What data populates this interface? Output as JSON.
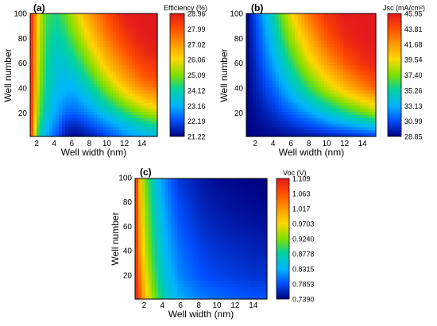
{
  "chart_data": [
    {
      "type": "heatmap",
      "panel_label": "(a)",
      "title": "",
      "xlabel": "Well width (nm)",
      "ylabel": "Well number",
      "xlim": [
        1,
        15.5
      ],
      "ylim": [
        1,
        100
      ],
      "xticks": [
        "2",
        "4",
        "6",
        "8",
        "10",
        "12",
        "14"
      ],
      "yticks": [
        "20",
        "40",
        "60",
        "80",
        "100"
      ],
      "colorbar_title": "Efficiency (%)",
      "colorbar_ticks": [
        "28.96",
        "27.99",
        "27.02",
        "26.06",
        "25.09",
        "24.12",
        "23.16",
        "22.19",
        "21.22"
      ],
      "zlim": [
        21.22,
        28.96
      ],
      "grid": false,
      "contour_lines": true,
      "values_grid": {
        "x": [
          1,
          1.5,
          2,
          3,
          4,
          5,
          6,
          7,
          8,
          9,
          10,
          11,
          12,
          13,
          14,
          15.5
        ],
        "y": [
          1,
          10,
          20,
          30,
          40,
          50,
          60,
          70,
          80,
          90,
          100
        ],
        "z": [
          [
            28.9,
            26.0,
            24.0,
            23.0,
            22.3,
            21.5,
            21.3,
            21.4,
            21.6,
            21.9,
            22.2,
            22.5,
            22.8,
            23.0,
            23.2,
            23.4
          ],
          [
            28.9,
            26.3,
            24.4,
            23.3,
            22.6,
            21.9,
            21.7,
            21.9,
            22.2,
            22.5,
            22.8,
            23.1,
            23.4,
            23.7,
            24.0,
            24.3
          ],
          [
            28.9,
            26.6,
            24.8,
            23.6,
            23.0,
            22.5,
            22.4,
            22.6,
            22.9,
            23.3,
            23.7,
            24.1,
            24.5,
            24.9,
            25.3,
            25.6
          ],
          [
            28.9,
            26.8,
            25.0,
            23.8,
            23.2,
            22.9,
            22.8,
            23.1,
            23.5,
            24.0,
            24.5,
            25.0,
            25.5,
            25.9,
            26.3,
            26.7
          ],
          [
            28.9,
            27.0,
            25.2,
            24.0,
            23.4,
            23.2,
            23.2,
            23.6,
            24.1,
            24.7,
            25.3,
            25.9,
            26.4,
            26.9,
            27.3,
            27.6
          ],
          [
            28.9,
            27.1,
            25.3,
            24.1,
            23.5,
            23.4,
            23.6,
            24.1,
            24.7,
            25.4,
            26.0,
            26.6,
            27.1,
            27.5,
            27.9,
            28.2
          ],
          [
            28.9,
            27.2,
            25.4,
            24.2,
            23.6,
            23.7,
            24.1,
            24.6,
            25.3,
            26.0,
            26.6,
            27.1,
            27.6,
            28.0,
            28.3,
            28.6
          ],
          [
            28.9,
            27.3,
            25.5,
            24.3,
            23.8,
            24.0,
            24.5,
            25.1,
            25.8,
            26.5,
            27.1,
            27.6,
            28.0,
            28.4,
            28.7,
            28.9
          ],
          [
            28.9,
            27.3,
            25.6,
            24.4,
            24.0,
            24.3,
            24.9,
            25.6,
            26.3,
            27.0,
            27.5,
            28.0,
            28.4,
            28.7,
            28.9,
            28.96
          ],
          [
            28.9,
            27.4,
            25.7,
            24.5,
            24.2,
            24.6,
            25.3,
            26.0,
            26.7,
            27.3,
            27.9,
            28.3,
            28.7,
            28.9,
            28.96,
            28.96
          ],
          [
            28.9,
            27.4,
            25.8,
            24.6,
            24.4,
            24.9,
            25.6,
            26.4,
            27.1,
            27.7,
            28.2,
            28.6,
            28.9,
            28.96,
            28.96,
            28.96
          ]
        ]
      }
    },
    {
      "type": "heatmap",
      "panel_label": "(b)",
      "title": "",
      "xlabel": "Well width (nm)",
      "ylabel": "Well number",
      "xlim": [
        1,
        15.5
      ],
      "ylim": [
        1,
        100
      ],
      "xticks": [
        "2",
        "4",
        "6",
        "8",
        "10",
        "12",
        "14"
      ],
      "yticks": [
        "20",
        "40",
        "60",
        "80",
        "100"
      ],
      "colorbar_title": "Jsc (mA/cm²)",
      "colorbar_ticks": [
        "45.95",
        "43.81",
        "41.68",
        "39.54",
        "37.40",
        "35.26",
        "33.13",
        "30.99",
        "28.85"
      ],
      "zlim": [
        28.85,
        45.95
      ],
      "grid": false,
      "contour_lines": true,
      "values_grid": {
        "x": [
          1,
          2,
          4,
          6,
          8,
          10,
          12,
          14,
          15.5
        ],
        "y": [
          1,
          20,
          40,
          60,
          80,
          100
        ],
        "z": [
          [
            28.9,
            28.9,
            29.0,
            29.2,
            29.4,
            29.7,
            30.0,
            30.4,
            30.7
          ],
          [
            28.9,
            29.3,
            30.2,
            31.4,
            32.7,
            34.2,
            35.6,
            37.0,
            38.0
          ],
          [
            28.9,
            29.7,
            31.5,
            33.8,
            36.2,
            38.5,
            40.5,
            42.2,
            43.3
          ],
          [
            28.9,
            30.1,
            32.8,
            35.9,
            38.9,
            41.5,
            43.5,
            45.0,
            45.7
          ],
          [
            28.9,
            30.5,
            34.0,
            37.8,
            41.0,
            43.6,
            45.3,
            45.9,
            45.95
          ],
          [
            28.9,
            30.9,
            35.1,
            39.4,
            42.8,
            45.0,
            45.9,
            45.95,
            45.95
          ]
        ]
      }
    },
    {
      "type": "heatmap",
      "panel_label": "(c)",
      "title": "",
      "xlabel": "Well width (nm)",
      "ylabel": "Well number",
      "xlim": [
        1,
        15.5
      ],
      "ylim": [
        1,
        100
      ],
      "xticks": [
        "2",
        "4",
        "6",
        "8",
        "10",
        "12",
        "14"
      ],
      "yticks": [
        "20",
        "40",
        "60",
        "80",
        "100"
      ],
      "colorbar_title": "Voc (V)",
      "colorbar_ticks": [
        "1.109",
        "1.063",
        "1.017",
        "0.9703",
        "0.9240",
        "0.8778",
        "0.8315",
        "0.7853",
        "0.7390"
      ],
      "zlim": [
        0.739,
        1.109
      ],
      "grid": false,
      "contour_lines": true,
      "values_grid": {
        "x": [
          1,
          1.5,
          2,
          3,
          4,
          5,
          6,
          8,
          10,
          12,
          14,
          15.5
        ],
        "y": [
          1,
          10,
          20,
          30,
          40,
          50,
          60,
          80,
          100
        ],
        "z": [
          [
            1.109,
            1.06,
            1.0,
            0.93,
            0.88,
            0.85,
            0.83,
            0.81,
            0.8,
            0.795,
            0.79,
            0.79
          ],
          [
            1.109,
            1.05,
            0.99,
            0.92,
            0.87,
            0.84,
            0.82,
            0.8,
            0.79,
            0.785,
            0.78,
            0.78
          ],
          [
            1.109,
            1.04,
            0.98,
            0.91,
            0.86,
            0.83,
            0.81,
            0.79,
            0.78,
            0.775,
            0.77,
            0.77
          ],
          [
            1.109,
            1.03,
            0.97,
            0.9,
            0.855,
            0.825,
            0.805,
            0.785,
            0.775,
            0.77,
            0.765,
            0.765
          ],
          [
            1.109,
            1.02,
            0.96,
            0.895,
            0.85,
            0.82,
            0.8,
            0.78,
            0.77,
            0.765,
            0.76,
            0.76
          ],
          [
            1.109,
            1.015,
            0.955,
            0.89,
            0.845,
            0.815,
            0.795,
            0.775,
            0.765,
            0.76,
            0.757,
            0.755
          ],
          [
            1.109,
            1.01,
            0.95,
            0.885,
            0.84,
            0.81,
            0.79,
            0.77,
            0.76,
            0.755,
            0.752,
            0.75
          ],
          [
            1.109,
            1.0,
            0.94,
            0.875,
            0.83,
            0.8,
            0.78,
            0.762,
            0.752,
            0.748,
            0.745,
            0.743
          ],
          [
            1.109,
            0.99,
            0.93,
            0.865,
            0.82,
            0.79,
            0.77,
            0.755,
            0.745,
            0.742,
            0.74,
            0.739
          ]
        ]
      }
    }
  ]
}
